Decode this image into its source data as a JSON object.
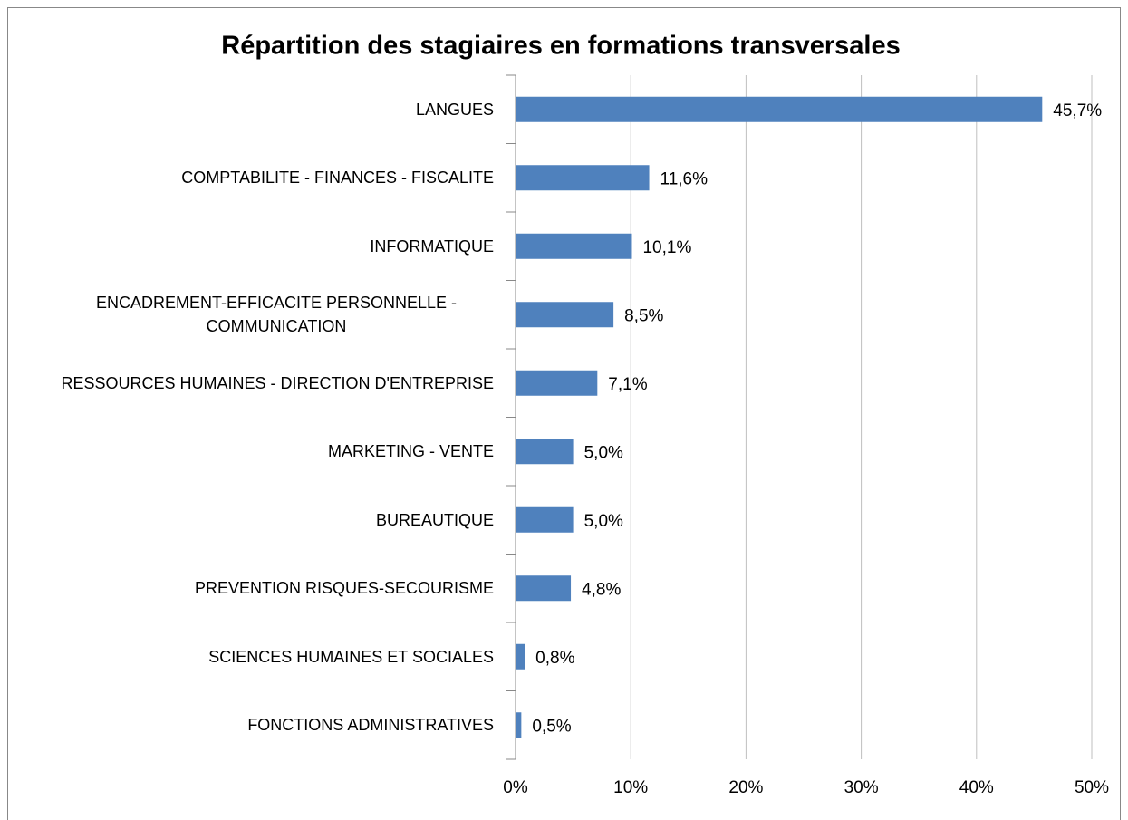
{
  "chart_data": {
    "type": "hbar",
    "title": "Répartition des stagiaires en formations transversales",
    "categories": [
      "LANGUES",
      "COMPTABILITE - FINANCES - FISCALITE",
      "INFORMATIQUE",
      "ENCADREMENT-EFFICACITE PERSONNELLE - COMMUNICATION",
      "RESSOURCES HUMAINES - DIRECTION D'ENTREPRISE",
      "MARKETING - VENTE",
      "BUREAUTIQUE",
      "PREVENTION RISQUES-SECOURISME",
      "SCIENCES HUMAINES ET SOCIALES",
      "FONCTIONS ADMINISTRATIVES"
    ],
    "values": [
      45.7,
      11.6,
      10.1,
      8.5,
      7.1,
      5.0,
      5.0,
      4.8,
      0.8,
      0.5
    ],
    "value_labels": [
      "45,7%",
      "11,6%",
      "10,1%",
      "8,5%",
      "7,1%",
      "5,0%",
      "5,0%",
      "4,8%",
      "0,8%",
      "0,5%"
    ],
    "color": "#4f81bd",
    "xlim": [
      0,
      50
    ],
    "xticks": [
      {
        "value": 0,
        "label": "0%"
      },
      {
        "value": 10,
        "label": "10%"
      },
      {
        "value": 20,
        "label": "20%"
      },
      {
        "value": 30,
        "label": "30%"
      },
      {
        "value": 40,
        "label": "40%"
      },
      {
        "value": 50,
        "label": "50%"
      }
    ],
    "grid": true
  }
}
